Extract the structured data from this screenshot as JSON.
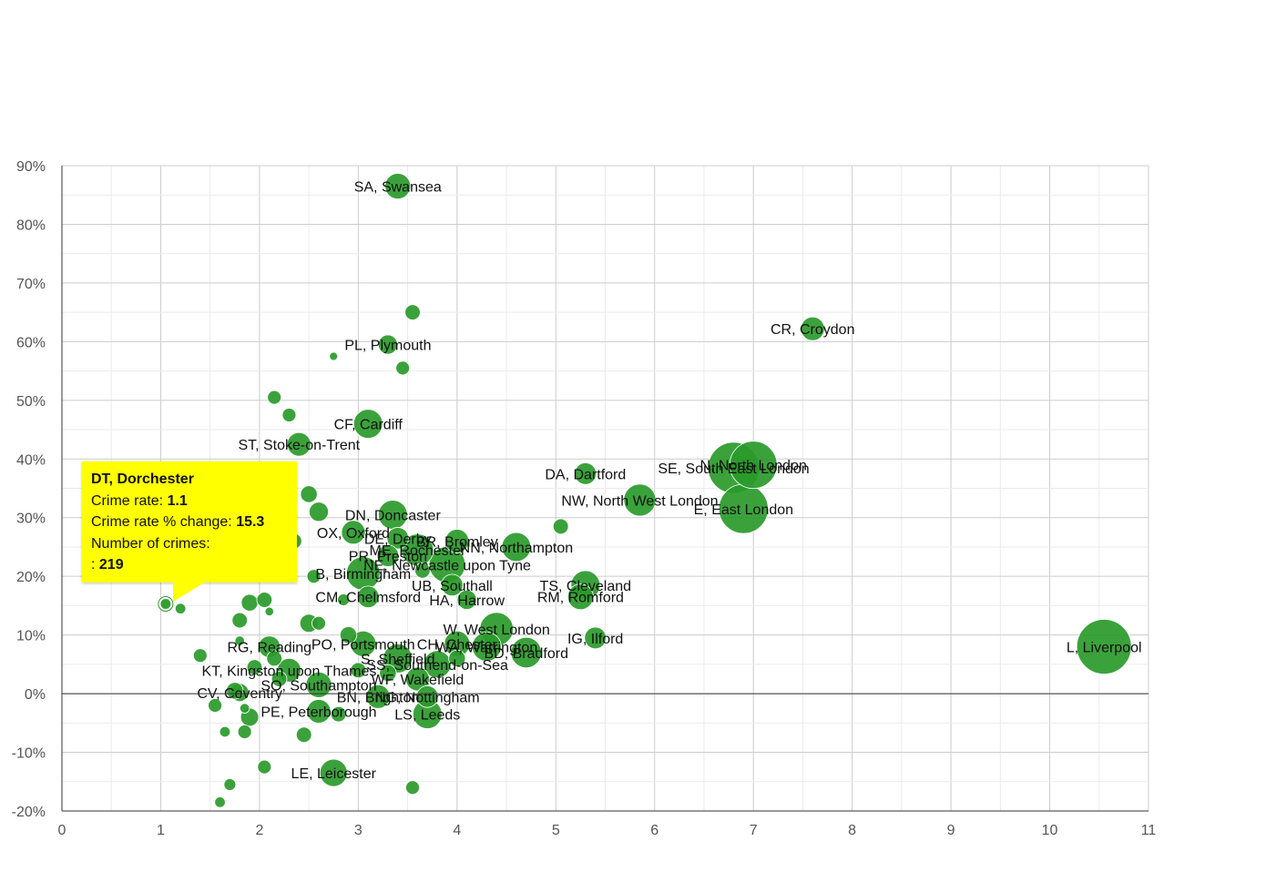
{
  "chart_data": {
    "type": "scatter",
    "xlabel": "",
    "ylabel": "",
    "xlim": [
      0,
      11
    ],
    "ylim": [
      -20,
      90
    ],
    "x_ticks": [
      "0",
      "1",
      "2",
      "3",
      "4",
      "5",
      "6",
      "7",
      "8",
      "9",
      "10",
      "11"
    ],
    "y_ticks": [
      "-20%",
      "-10%",
      "0%",
      "10%",
      "20%",
      "30%",
      "40%",
      "50%",
      "60%",
      "70%",
      "80%",
      "90%"
    ],
    "colors": {
      "bubble": "#2a9a2a",
      "bubble_stroke": "#ffffff",
      "grid": "#cccccc",
      "axis": "#333333",
      "tooltip_bg": "#ffff00"
    },
    "points": [
      {
        "x": 3.4,
        "y": 86.5,
        "n": 7000,
        "label": "SA, Swansea"
      },
      {
        "x": 7.6,
        "y": 62.2,
        "n": 6000,
        "label": "CR, Croydon"
      },
      {
        "x": 3.3,
        "y": 59.5,
        "n": 4000,
        "label": "PL, Plymouth"
      },
      {
        "x": 3.1,
        "y": 46.0,
        "n": 9000,
        "label": "CF, Cardiff"
      },
      {
        "x": 2.4,
        "y": 42.5,
        "n": 6000,
        "label": "ST, Stoke-on-Trent"
      },
      {
        "x": 5.3,
        "y": 37.5,
        "n": 5000,
        "label": "DA, Dartford"
      },
      {
        "x": 6.8,
        "y": 38.5,
        "n": 28000,
        "label": "SE, South East London"
      },
      {
        "x": 7.0,
        "y": 39.0,
        "n": 24000,
        "label": "N, North London"
      },
      {
        "x": 5.85,
        "y": 33.0,
        "n": 11000,
        "label": "NW, North West London"
      },
      {
        "x": 6.9,
        "y": 31.5,
        "n": 26000,
        "label": "E, East London"
      },
      {
        "x": 3.35,
        "y": 30.5,
        "n": 9000,
        "label": "DN, Doncaster"
      },
      {
        "x": 2.95,
        "y": 27.5,
        "n": 6000,
        "label": "OX, Oxford"
      },
      {
        "x": 3.4,
        "y": 26.5,
        "n": 5000,
        "label": "DE, Derby"
      },
      {
        "x": 3.6,
        "y": 24.5,
        "n": 11000,
        "label": "ME, Rochester"
      },
      {
        "x": 4.0,
        "y": 26.0,
        "n": 6000,
        "label": "BR, Bromley"
      },
      {
        "x": 4.6,
        "y": 25.0,
        "n": 9000,
        "label": "NN, Northampton"
      },
      {
        "x": 3.3,
        "y": 23.5,
        "n": 5000,
        "label": "PR, Preston"
      },
      {
        "x": 3.9,
        "y": 22.0,
        "n": 14000,
        "label": "NE, Newcastle upon Tyne"
      },
      {
        "x": 3.05,
        "y": 20.5,
        "n": 12000,
        "label": "B, Birmingham"
      },
      {
        "x": 3.95,
        "y": 18.5,
        "n": 5000,
        "label": "UB, Southall"
      },
      {
        "x": 5.3,
        "y": 18.5,
        "n": 9000,
        "label": "TS, Cleveland"
      },
      {
        "x": 3.1,
        "y": 16.5,
        "n": 5000,
        "label": "CM, Chelmsford"
      },
      {
        "x": 4.1,
        "y": 16.0,
        "n": 4000,
        "label": "HA, Harrow"
      },
      {
        "x": 5.25,
        "y": 16.5,
        "n": 7000,
        "label": "RM, Romford"
      },
      {
        "x": 10.55,
        "y": 8.0,
        "n": 32000,
        "label": "L, Liverpool"
      },
      {
        "x": 4.4,
        "y": 11.0,
        "n": 12000,
        "label": "W, West London"
      },
      {
        "x": 5.4,
        "y": 9.5,
        "n": 5000,
        "label": "IG, Ilford"
      },
      {
        "x": 4.0,
        "y": 8.5,
        "n": 7000,
        "label": "CH, Chester"
      },
      {
        "x": 4.3,
        "y": 8.0,
        "n": 9000,
        "label": "WA, Warrington"
      },
      {
        "x": 4.7,
        "y": 7.0,
        "n": 10000,
        "label": "BD, Bradford"
      },
      {
        "x": 3.05,
        "y": 8.5,
        "n": 7000,
        "label": "PO, Portsmouth"
      },
      {
        "x": 3.4,
        "y": 6.0,
        "n": 9000,
        "label": "S, Sheffield"
      },
      {
        "x": 2.1,
        "y": 8.0,
        "n": 5000,
        "label": "RG, Reading"
      },
      {
        "x": 3.8,
        "y": 5.0,
        "n": 8000,
        "label": "SS, Southend-on-Sea"
      },
      {
        "x": 2.3,
        "y": 4.0,
        "n": 6000,
        "label": "KT, Kingston upon Thames"
      },
      {
        "x": 3.6,
        "y": 2.5,
        "n": 6000,
        "label": "WF, Wakefield"
      },
      {
        "x": 2.6,
        "y": 1.5,
        "n": 7000,
        "label": "SO, Southampton"
      },
      {
        "x": 3.7,
        "y": -0.5,
        "n": 5000,
        "label": "NG, Nottingham"
      },
      {
        "x": 1.8,
        "y": 0.2,
        "n": 3500,
        "label": "CV, Coventry"
      },
      {
        "x": 3.2,
        "y": -0.5,
        "n": 6000,
        "label": "BN, Brighton"
      },
      {
        "x": 2.6,
        "y": -3.0,
        "n": 6000,
        "label": "PE, Peterborough"
      },
      {
        "x": 3.7,
        "y": -3.5,
        "n": 9000,
        "label": "LS, Leeds"
      },
      {
        "x": 2.75,
        "y": -13.5,
        "n": 8000,
        "label": "LE, Leicester"
      },
      {
        "x": 1.05,
        "y": 15.3,
        "n": 219,
        "label": "DT, Dorchester",
        "highlight": true
      },
      {
        "x": 3.55,
        "y": 65.0,
        "n": 2500
      },
      {
        "x": 3.45,
        "y": 55.5,
        "n": 2000
      },
      {
        "x": 2.75,
        "y": 57.5,
        "n": 500
      },
      {
        "x": 2.15,
        "y": 50.5,
        "n": 2000
      },
      {
        "x": 2.3,
        "y": 47.5,
        "n": 2000
      },
      {
        "x": 2.5,
        "y": 34.0,
        "n": 3000
      },
      {
        "x": 2.6,
        "y": 31.0,
        "n": 4000
      },
      {
        "x": 5.05,
        "y": 28.5,
        "n": 2500
      },
      {
        "x": 2.35,
        "y": 26.0,
        "n": 2500
      },
      {
        "x": 2.55,
        "y": 20.0,
        "n": 2000
      },
      {
        "x": 3.65,
        "y": 21.0,
        "n": 2500
      },
      {
        "x": 1.9,
        "y": 15.5,
        "n": 3000
      },
      {
        "x": 2.05,
        "y": 16.0,
        "n": 2500
      },
      {
        "x": 2.1,
        "y": 14.0,
        "n": 800
      },
      {
        "x": 2.85,
        "y": 16.0,
        "n": 1500
      },
      {
        "x": 1.2,
        "y": 14.5,
        "n": 1200
      },
      {
        "x": 1.8,
        "y": 12.5,
        "n": 2500
      },
      {
        "x": 2.5,
        "y": 12.0,
        "n": 3500
      },
      {
        "x": 2.6,
        "y": 12.0,
        "n": 2000
      },
      {
        "x": 2.9,
        "y": 10.0,
        "n": 3000
      },
      {
        "x": 1.8,
        "y": 9.0,
        "n": 1000
      },
      {
        "x": 1.4,
        "y": 6.5,
        "n": 2000
      },
      {
        "x": 2.15,
        "y": 6.0,
        "n": 2500
      },
      {
        "x": 1.95,
        "y": 4.5,
        "n": 2500
      },
      {
        "x": 2.2,
        "y": 2.5,
        "n": 2500
      },
      {
        "x": 1.75,
        "y": 0.5,
        "n": 3000
      },
      {
        "x": 1.55,
        "y": -2.0,
        "n": 2000
      },
      {
        "x": 1.85,
        "y": -2.5,
        "n": 1000
      },
      {
        "x": 1.9,
        "y": -4.0,
        "n": 3500
      },
      {
        "x": 2.8,
        "y": -3.5,
        "n": 2500
      },
      {
        "x": 1.65,
        "y": -6.5,
        "n": 1200
      },
      {
        "x": 1.85,
        "y": -6.5,
        "n": 2000
      },
      {
        "x": 2.45,
        "y": -7.0,
        "n": 2500
      },
      {
        "x": 2.05,
        "y": -12.5,
        "n": 2000
      },
      {
        "x": 1.7,
        "y": -15.5,
        "n": 1500
      },
      {
        "x": 1.6,
        "y": -18.5,
        "n": 1200
      },
      {
        "x": 3.55,
        "y": -16.0,
        "n": 2000
      },
      {
        "x": 3.3,
        "y": 3.5,
        "n": 3000
      },
      {
        "x": 4.0,
        "y": 6.0,
        "n": 3000
      },
      {
        "x": 3.0,
        "y": 4.0,
        "n": 2500
      }
    ]
  },
  "tooltip": {
    "title": "DT, Dorchester",
    "rate_label": "Crime rate:",
    "rate_value": "1.1",
    "change_label": "Crime rate % change:",
    "change_value": "15.3",
    "count_label": "Number of crimes:",
    "count_prefix": ":",
    "count_value": "219"
  }
}
